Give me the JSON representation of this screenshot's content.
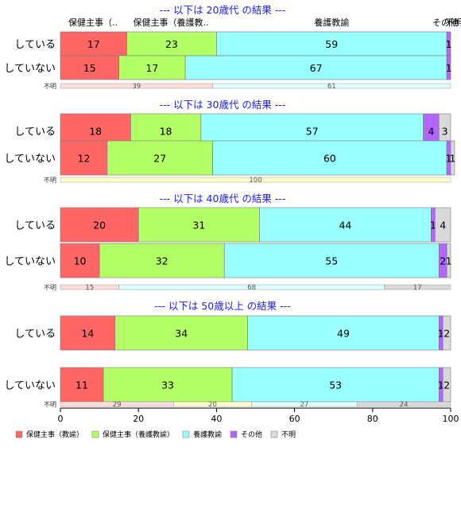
{
  "chart_data": {
    "type": "bar",
    "orientation": "horizontal-stacked-100",
    "xlim": [
      0,
      100
    ],
    "xticks": [
      "0",
      "20",
      "40",
      "60",
      "80",
      "100"
    ],
    "category_labels": [
      "保健主事（教諭）",
      "保健主事（養護教諭）",
      "養護教諭",
      "その他",
      "不明"
    ],
    "colors": [
      "#ff6666",
      "#b3ff66",
      "#99ffff",
      "#b366ff",
      "#d9d9d9"
    ],
    "unknown_colors": [
      "#ffdddd",
      "#ffffcc",
      "#ddffff",
      "#d9d9d9"
    ],
    "unknown_label": "不明",
    "column_headers": [
      "保健主事（..",
      "保健主事（養護教..",
      "養護教諭",
      "その他",
      "不明"
    ],
    "groups": [
      {
        "title": "--- 以下は 20歳代 の結果 ---",
        "rows": [
          {
            "label": "している",
            "values": [
              17,
              23,
              59,
              1,
              0
            ]
          },
          {
            "label": "していない",
            "values": [
              15,
              17,
              67,
              1,
              0
            ]
          }
        ],
        "unknown_values": [
          39,
          0,
          61,
          0
        ]
      },
      {
        "title": "--- 以下は 30歳代 の結果 ---",
        "rows": [
          {
            "label": "している",
            "values": [
              18,
              18,
              57,
              4,
              3
            ]
          },
          {
            "label": "していない",
            "values": [
              12,
              27,
              60,
              1,
              1
            ]
          }
        ],
        "unknown_values": [
          0,
          100,
          0,
          0
        ]
      },
      {
        "title": "--- 以下は 40歳代 の結果 ---",
        "rows": [
          {
            "label": "している",
            "values": [
              20,
              31,
              44,
              1,
              4
            ]
          },
          {
            "label": "していない",
            "values": [
              10,
              32,
              55,
              2,
              1
            ]
          }
        ],
        "unknown_values": [
          15,
          0,
          68,
          17
        ]
      },
      {
        "title": "--- 以下は 50歳以上 の結果 ---",
        "rows": [
          {
            "label": "している",
            "values": [
              14,
              34,
              49,
              1,
              2
            ]
          },
          {
            "label": "していない",
            "values": [
              11,
              33,
              53,
              1,
              2
            ]
          }
        ],
        "unknown_values": [
          29,
          20,
          27,
          24
        ]
      }
    ],
    "legend": [
      "保健主事（教諭）",
      "保健主事（養護教諭）",
      "養護教諭",
      "その他",
      "不明"
    ]
  }
}
